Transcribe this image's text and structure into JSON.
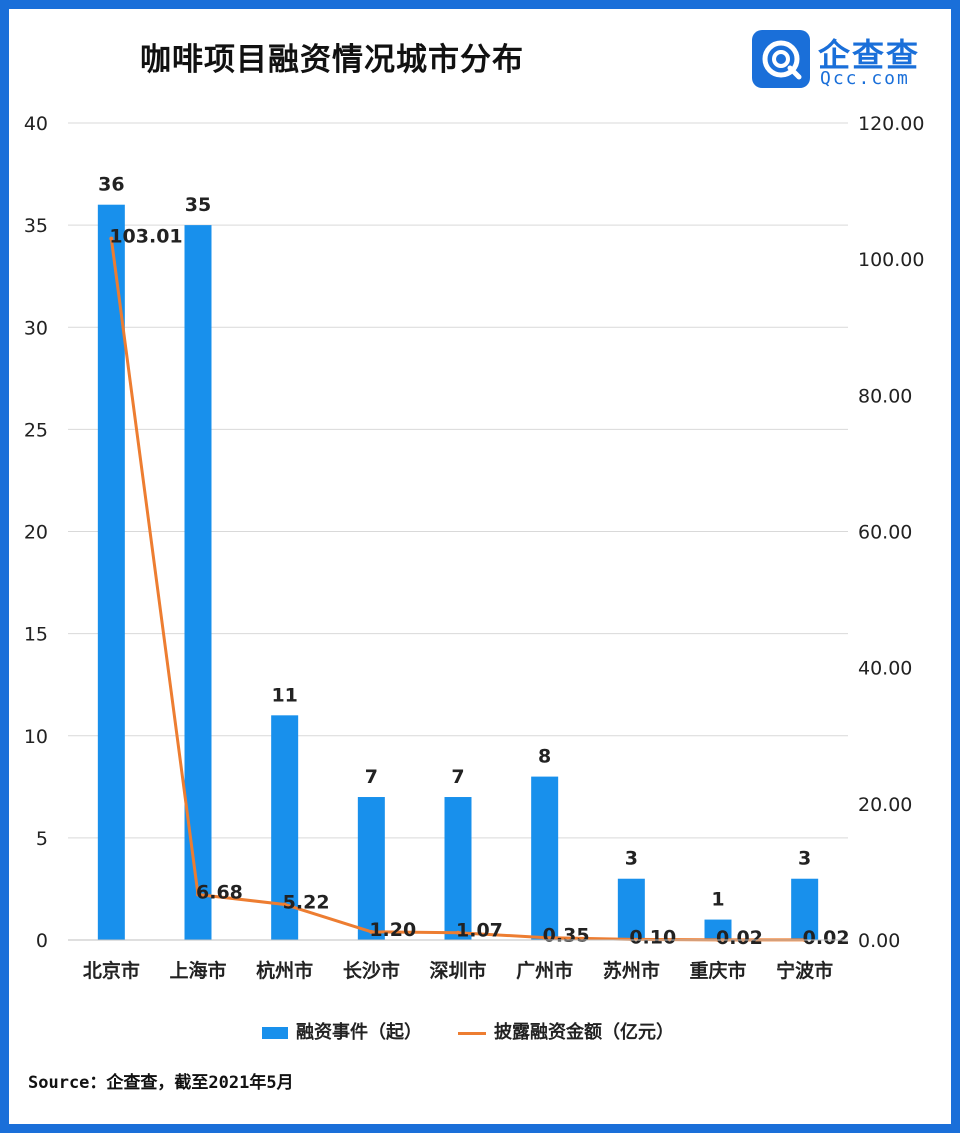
{
  "title": "咖啡项目融资情况城市分布",
  "logo": {
    "cn": "企查查",
    "en": "Qcc.com",
    "icon": "qcc-logo-icon"
  },
  "source": "Source：企查查，截至2021年5月",
  "colors": {
    "bar": "#1890ec",
    "line": "#ed7d31",
    "frame": "#1a6fd9"
  },
  "chart_data": {
    "type": "bar",
    "categories": [
      "北京市",
      "上海市",
      "杭州市",
      "长沙市",
      "深圳市",
      "广州市",
      "苏州市",
      "重庆市",
      "宁波市"
    ],
    "series": [
      {
        "name": "融资事件（起）",
        "type": "bar",
        "axis": "left",
        "values": [
          36,
          35,
          11,
          7,
          7,
          8,
          3,
          1,
          3
        ],
        "labels": [
          "36",
          "35",
          "11",
          "7",
          "7",
          "8",
          "3",
          "1",
          "3"
        ]
      },
      {
        "name": "披露融资金额（亿元）",
        "type": "line",
        "axis": "right",
        "values": [
          103.01,
          6.68,
          5.22,
          1.2,
          1.07,
          0.35,
          0.1,
          0.02,
          0.02
        ],
        "labels": [
          "103.01",
          "6.68",
          "5.22",
          "1.20",
          "1.07",
          "0.35",
          "0.10",
          "0.02",
          "0.02"
        ]
      }
    ],
    "y_left": {
      "ylim": [
        0,
        40
      ],
      "ticks": [
        "0",
        "5",
        "10",
        "15",
        "20",
        "25",
        "30",
        "35",
        "40"
      ]
    },
    "y_right": {
      "ylim": [
        0,
        120
      ],
      "ticks": [
        "0.00",
        "20.00",
        "40.00",
        "60.00",
        "80.00",
        "100.00",
        "120.00"
      ]
    },
    "grid": true,
    "legend_position": "bottom"
  }
}
